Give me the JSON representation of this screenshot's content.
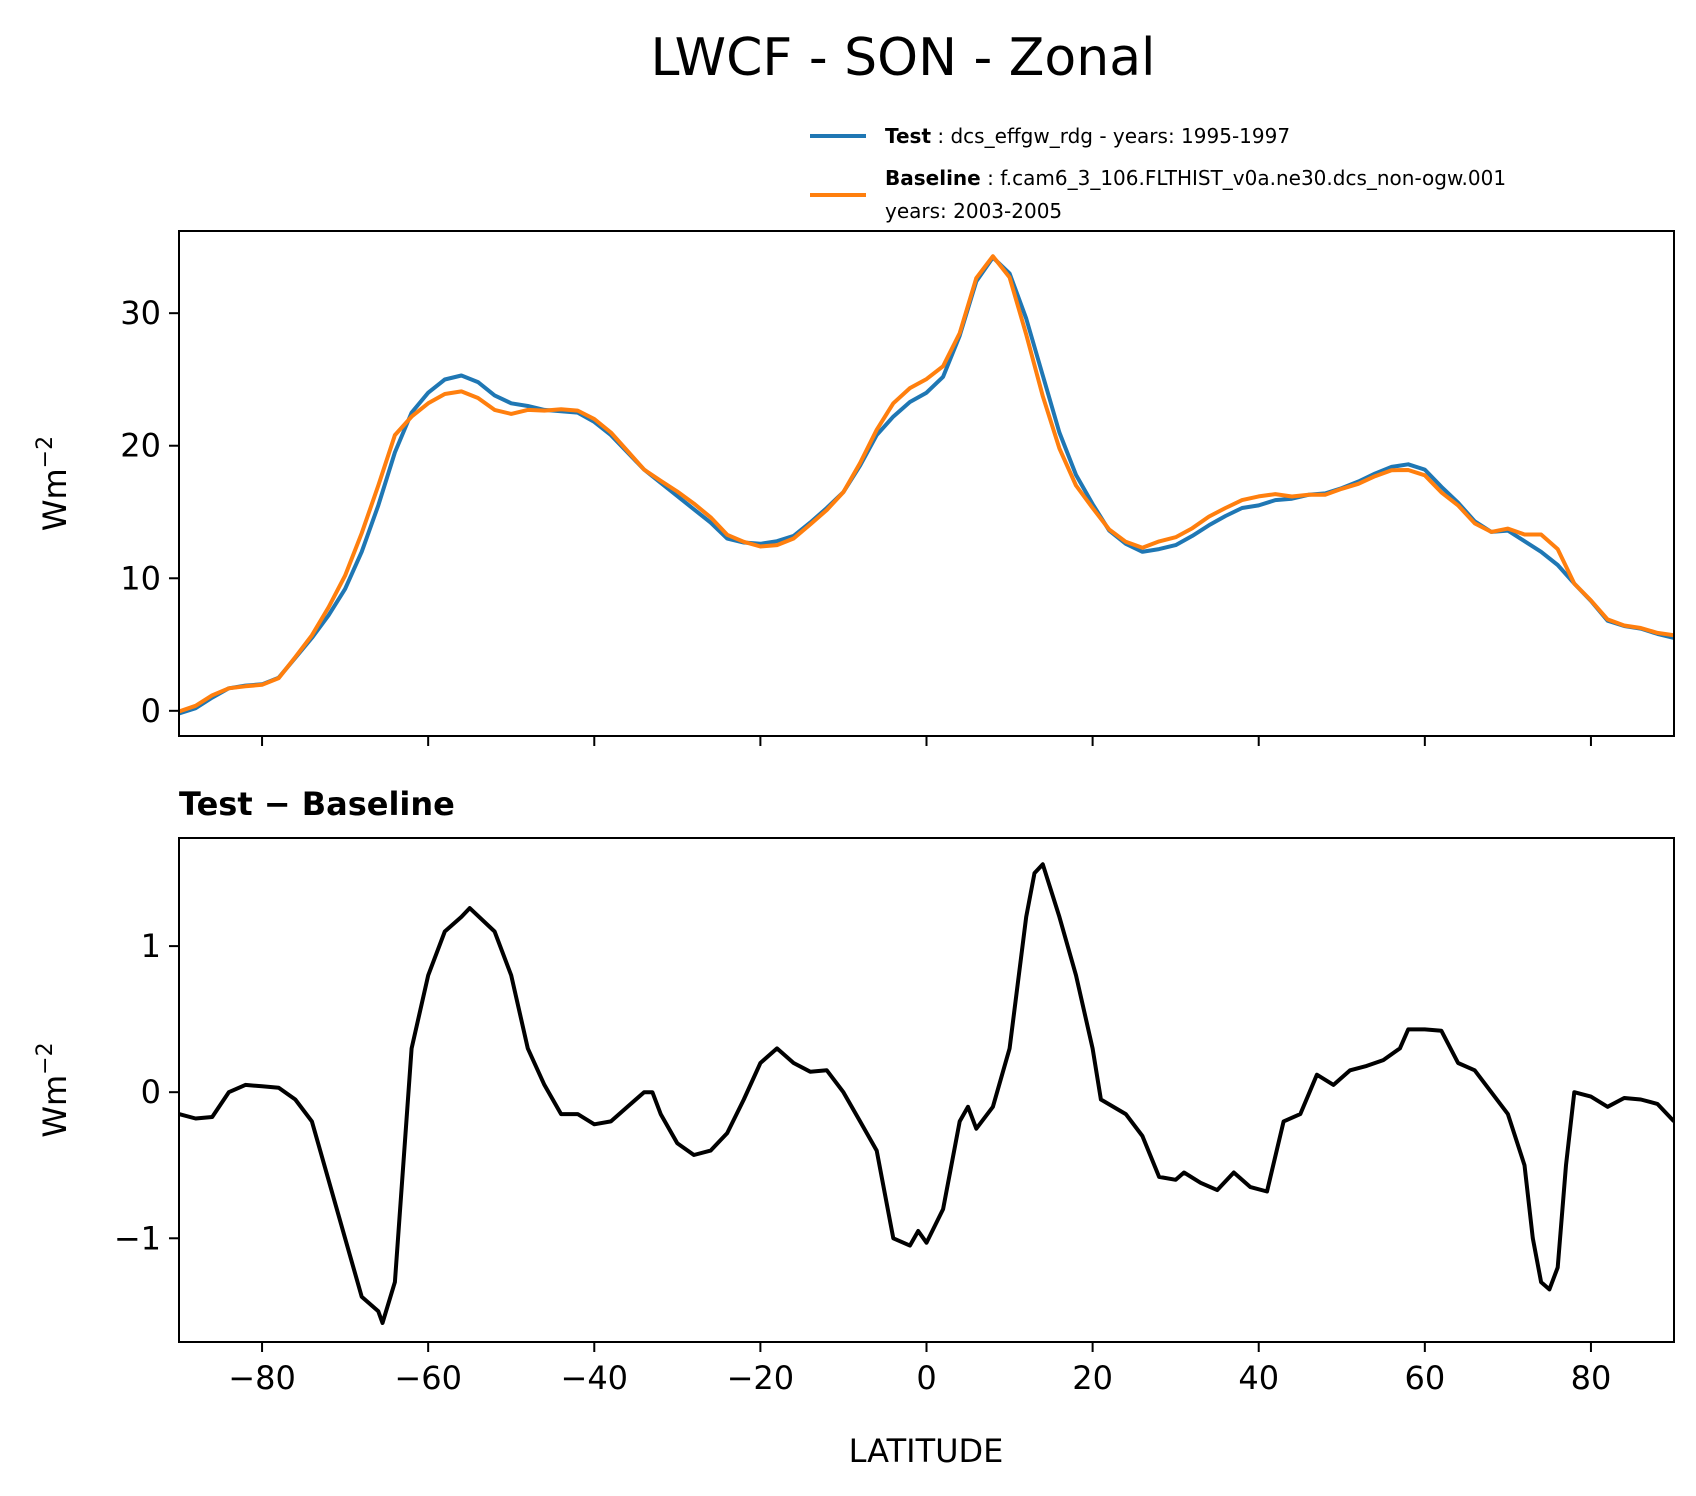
{
  "chart_data": [
    {
      "type": "line",
      "title": "LWCF - SON - Zonal",
      "xlabel": "",
      "ylabel": "Wm",
      "ylabel_sup": "−2",
      "xlim": [
        -90,
        90
      ],
      "ylim": [
        -1.9,
        36.2
      ],
      "xticks": [
        -80,
        -60,
        -40,
        -20,
        0,
        20,
        40,
        60,
        80
      ],
      "yticks": [
        0,
        10,
        20,
        30
      ],
      "ytick_labels": [
        "0",
        "10",
        "20",
        "30"
      ],
      "grid": false,
      "legend_placement": "above-right",
      "x": [
        -90,
        -88,
        -86,
        -84,
        -82,
        -80,
        -78,
        -76,
        -74,
        -72,
        -70,
        -68,
        -66,
        -64,
        -62,
        -60,
        -58,
        -56,
        -54,
        -52,
        -50,
        -48,
        -46,
        -44,
        -42,
        -40,
        -38,
        -36,
        -34,
        -32,
        -30,
        -28,
        -26,
        -24,
        -22,
        -20,
        -18,
        -16,
        -14,
        -12,
        -10,
        -8,
        -6,
        -4,
        -2,
        0,
        2,
        4,
        6,
        8,
        10,
        12,
        14,
        16,
        18,
        20,
        22,
        24,
        26,
        28,
        30,
        32,
        34,
        36,
        38,
        40,
        42,
        44,
        46,
        48,
        50,
        52,
        54,
        56,
        58,
        60,
        62,
        64,
        66,
        68,
        70,
        72,
        74,
        76,
        78,
        80,
        82,
        84,
        86,
        88,
        90
      ],
      "series": [
        {
          "name_bold": "Test",
          "name": " : dcs_effgw_rdg - years: 1995-1997",
          "color": "#1f77b4",
          "values": [
            -0.2,
            0.2,
            1.0,
            1.7,
            1.9,
            2.0,
            2.5,
            4.0,
            5.5,
            7.2,
            9.2,
            12.0,
            15.5,
            19.5,
            22.5,
            24.0,
            25.0,
            25.3,
            24.8,
            23.8,
            23.2,
            23.0,
            22.7,
            22.6,
            22.5,
            21.8,
            20.8,
            19.5,
            18.2,
            17.2,
            16.2,
            15.2,
            14.2,
            13.0,
            12.7,
            12.6,
            12.8,
            13.2,
            14.2,
            15.3,
            16.5,
            18.5,
            20.8,
            22.2,
            23.3,
            24.0,
            25.2,
            28.3,
            32.4,
            34.2,
            33.0,
            29.6,
            25.3,
            21.0,
            17.8,
            15.6,
            13.6,
            12.6,
            12.0,
            12.2,
            12.5,
            13.2,
            14.0,
            14.7,
            15.3,
            15.5,
            15.9,
            16.0,
            16.3,
            16.4,
            16.8,
            17.3,
            17.9,
            18.4,
            18.6,
            18.2,
            16.9,
            15.7,
            14.3,
            13.5,
            13.6,
            12.8,
            12.0,
            11.0,
            9.6,
            8.3,
            6.8,
            6.4,
            6.2,
            5.8,
            5.5
          ]
        },
        {
          "name_bold": "Baseline",
          "name": " : f.cam6_3_106.FLTHIST_v0a.ne30.dcs_non-ogw.001",
          "name_line2": "years: 2003-2005",
          "color": "#ff7f0e",
          "values": [
            -0.05,
            0.38,
            1.17,
            1.7,
            1.85,
            1.96,
            2.47,
            4.05,
            5.7,
            7.8,
            10.2,
            13.4,
            17.0,
            20.8,
            22.2,
            23.2,
            23.9,
            24.1,
            23.6,
            22.7,
            22.4,
            22.7,
            22.65,
            22.75,
            22.65,
            22.02,
            21.0,
            19.6,
            18.2,
            17.35,
            16.55,
            15.63,
            14.6,
            13.28,
            12.75,
            12.4,
            12.5,
            13.0,
            14.06,
            15.15,
            16.5,
            18.7,
            21.2,
            23.2,
            24.35,
            25.03,
            26.0,
            28.5,
            32.65,
            34.3,
            32.7,
            28.4,
            23.74,
            19.8,
            17.0,
            15.3,
            13.68,
            12.75,
            12.3,
            12.78,
            13.1,
            13.78,
            14.65,
            15.3,
            15.9,
            16.18,
            16.35,
            16.17,
            16.3,
            16.3,
            16.75,
            17.13,
            17.7,
            18.15,
            18.17,
            17.77,
            16.48,
            15.5,
            14.15,
            13.5,
            13.75,
            13.3,
            13.3,
            12.2,
            9.6,
            8.33,
            6.9,
            6.44,
            6.25,
            5.88,
            5.7
          ]
        }
      ]
    },
    {
      "type": "line",
      "title": "Test − Baseline",
      "xlabel": "LATITUDE",
      "ylabel": "Wm",
      "ylabel_sup": "−2",
      "xlim": [
        -90,
        90
      ],
      "ylim": [
        -1.71,
        1.74
      ],
      "xticks": [
        -80,
        -60,
        -40,
        -20,
        0,
        20,
        40,
        60,
        80
      ],
      "xtick_labels": [
        "−80",
        "−60",
        "−40",
        "−20",
        "0",
        "20",
        "40",
        "60",
        "80"
      ],
      "yticks": [
        -1,
        0,
        1
      ],
      "ytick_labels": [
        "−1",
        "0",
        "1"
      ],
      "grid": false,
      "x": [
        -90,
        -88,
        -86,
        -84,
        -82,
        -80,
        -78,
        -76,
        -74,
        -72,
        -70,
        -68,
        -66,
        -65.5,
        -64,
        -62,
        -60,
        -58,
        -56,
        -55,
        -52,
        -50,
        -48,
        -46,
        -44,
        -42,
        -40,
        -38,
        -36,
        -34,
        -33,
        -32,
        -30,
        -28,
        -26,
        -24,
        -22,
        -20,
        -18,
        -16,
        -14,
        -12,
        -10,
        -8,
        -6,
        -4,
        -2,
        -1,
        0,
        2,
        4,
        5,
        6,
        8,
        10,
        12,
        13,
        14,
        16,
        18,
        20,
        21,
        24,
        26,
        28,
        30,
        31,
        33,
        35,
        37,
        39,
        41,
        43,
        45,
        47,
        49,
        51,
        53,
        55,
        57,
        58,
        60,
        62,
        64,
        66,
        68,
        70,
        72,
        73,
        74,
        75,
        76,
        77,
        78,
        80,
        82,
        84,
        86,
        88,
        90
      ],
      "series": [
        {
          "color": "#000000",
          "values": [
            -0.15,
            -0.18,
            -0.17,
            0.0,
            0.05,
            0.04,
            0.03,
            -0.05,
            -0.2,
            -0.6,
            -1.0,
            -1.4,
            -1.5,
            -1.58,
            -1.3,
            0.3,
            0.8,
            1.1,
            1.2,
            1.26,
            1.1,
            0.8,
            0.3,
            0.05,
            -0.15,
            -0.15,
            -0.22,
            -0.2,
            -0.1,
            0.0,
            0.0,
            -0.15,
            -0.35,
            -0.43,
            -0.4,
            -0.28,
            -0.05,
            0.2,
            0.3,
            0.2,
            0.14,
            0.15,
            0.0,
            -0.2,
            -0.4,
            -1.0,
            -1.05,
            -0.95,
            -1.03,
            -0.8,
            -0.2,
            -0.1,
            -0.25,
            -0.1,
            0.3,
            1.2,
            1.5,
            1.56,
            1.2,
            0.8,
            0.3,
            -0.05,
            -0.15,
            -0.3,
            -0.58,
            -0.6,
            -0.55,
            -0.62,
            -0.67,
            -0.55,
            -0.65,
            -0.68,
            -0.2,
            -0.15,
            0.12,
            0.05,
            0.15,
            0.18,
            0.22,
            0.3,
            0.43,
            0.43,
            0.42,
            0.2,
            0.15,
            0.0,
            -0.15,
            -0.5,
            -1.0,
            -1.3,
            -1.35,
            -1.2,
            -0.5,
            0.0,
            -0.03,
            -0.1,
            -0.04,
            -0.05,
            -0.08,
            -0.2
          ]
        }
      ]
    }
  ]
}
